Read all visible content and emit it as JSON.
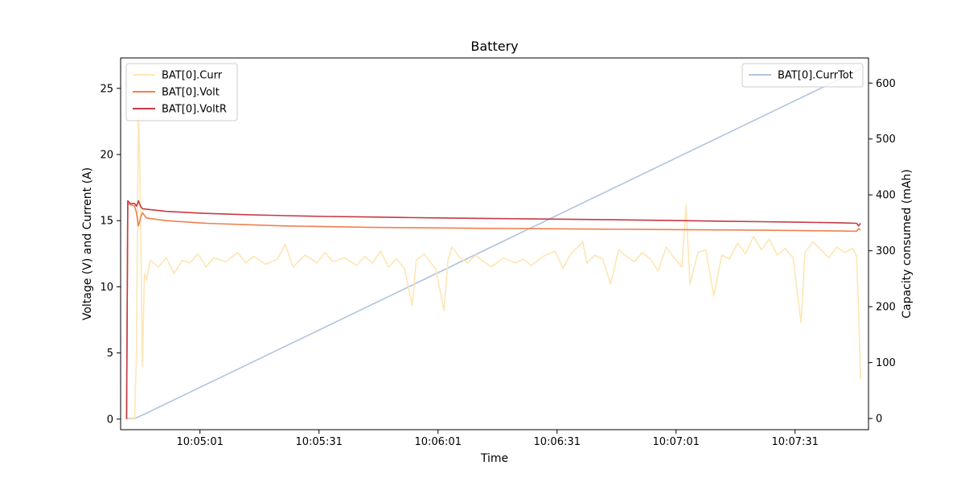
{
  "chart_data": {
    "type": "line",
    "title": "Battery",
    "xlabel": "Time",
    "ylabel_left": "Voltage (V) and Current (A)",
    "ylabel_right": "Capacity consumed (mAh)",
    "x_ticks": [
      "10:05:01",
      "10:05:31",
      "10:06:01",
      "10:06:31",
      "10:07:01",
      "10:07:31"
    ],
    "x_tick_values": [
      18.5,
      48.5,
      78.5,
      108.5,
      138.5,
      168.5
    ],
    "xlim": [
      -1.5,
      187
    ],
    "ylim_left": [
      -0.8,
      27.3
    ],
    "ylim_right": [
      -20,
      645
    ],
    "y_ticks_left": [
      0,
      5,
      10,
      15,
      20,
      25
    ],
    "y_ticks_right": [
      0,
      100,
      200,
      300,
      400,
      500,
      600
    ],
    "grid": false,
    "legend_left_position": "upper-left",
    "legend_right_position": "upper-right",
    "series_left": [
      {
        "name": "BAT[0].Curr",
        "color": "#fde6b4",
        "points": [
          [
            0,
            0
          ],
          [
            2,
            0
          ],
          [
            2.5,
            5
          ],
          [
            3,
            24
          ],
          [
            3.5,
            16
          ],
          [
            4,
            4
          ],
          [
            4.5,
            11
          ],
          [
            5,
            10.5
          ],
          [
            6,
            12
          ],
          [
            8,
            11.5
          ],
          [
            10,
            12.2
          ],
          [
            12,
            11
          ],
          [
            14,
            12
          ],
          [
            16,
            11.8
          ],
          [
            18,
            12.5
          ],
          [
            20,
            11.5
          ],
          [
            22,
            12.2
          ],
          [
            25,
            11.9
          ],
          [
            28,
            12.6
          ],
          [
            30,
            11.8
          ],
          [
            32,
            12.3
          ],
          [
            35,
            11.7
          ],
          [
            38,
            12.1
          ],
          [
            40,
            13.2
          ],
          [
            42,
            11.5
          ],
          [
            45,
            12.4
          ],
          [
            48,
            11.8
          ],
          [
            50,
            12.6
          ],
          [
            52,
            11.9
          ],
          [
            55,
            12.2
          ],
          [
            58,
            11.6
          ],
          [
            60,
            12.3
          ],
          [
            62,
            11.8
          ],
          [
            64,
            12.7
          ],
          [
            66,
            11.5
          ],
          [
            68,
            12.1
          ],
          [
            70,
            11.4
          ],
          [
            72,
            8.6
          ],
          [
            73,
            12
          ],
          [
            75,
            12.5
          ],
          [
            78,
            11.3
          ],
          [
            80,
            8.2
          ],
          [
            81,
            12
          ],
          [
            82,
            13
          ],
          [
            84,
            12.2
          ],
          [
            86,
            11.8
          ],
          [
            88,
            12.4
          ],
          [
            90,
            11.9
          ],
          [
            92,
            11.5
          ],
          [
            95,
            12.2
          ],
          [
            98,
            11.8
          ],
          [
            100,
            12.1
          ],
          [
            102,
            11.6
          ],
          [
            105,
            12.3
          ],
          [
            108,
            12.7
          ],
          [
            110,
            11.4
          ],
          [
            112,
            12.5
          ],
          [
            115,
            13.4
          ],
          [
            116,
            11.8
          ],
          [
            118,
            12.4
          ],
          [
            120,
            12.1
          ],
          [
            122,
            10.2
          ],
          [
            124,
            12.8
          ],
          [
            126,
            12.3
          ],
          [
            128,
            11.9
          ],
          [
            130,
            12.6
          ],
          [
            132,
            12.1
          ],
          [
            134,
            11.2
          ],
          [
            136,
            13
          ],
          [
            138,
            12.2
          ],
          [
            140,
            11.5
          ],
          [
            141,
            16.2
          ],
          [
            142,
            10.2
          ],
          [
            144,
            12.6
          ],
          [
            146,
            12.8
          ],
          [
            148,
            9.3
          ],
          [
            150,
            12.4
          ],
          [
            152,
            12.1
          ],
          [
            154,
            13.3
          ],
          [
            156,
            12.5
          ],
          [
            158,
            13.8
          ],
          [
            160,
            12.8
          ],
          [
            162,
            13.6
          ],
          [
            164,
            12.4
          ],
          [
            166,
            12.9
          ],
          [
            168,
            12.2
          ],
          [
            170,
            7.3
          ],
          [
            171,
            12.6
          ],
          [
            173,
            13.4
          ],
          [
            175,
            12.8
          ],
          [
            177,
            12.2
          ],
          [
            179,
            13
          ],
          [
            181,
            12.6
          ],
          [
            183,
            12.9
          ],
          [
            184,
            12.3
          ],
          [
            184.5,
            8.2
          ],
          [
            185,
            3
          ]
        ]
      },
      {
        "name": "BAT[0].Volt",
        "color": "#f08050",
        "points": [
          [
            0,
            0
          ],
          [
            0.3,
            16.3
          ],
          [
            1,
            16.2
          ],
          [
            2,
            16.1
          ],
          [
            2.5,
            15.6
          ],
          [
            3,
            14.6
          ],
          [
            3.5,
            15.2
          ],
          [
            4,
            15.6
          ],
          [
            5,
            15.2
          ],
          [
            10,
            15
          ],
          [
            20,
            14.8
          ],
          [
            30,
            14.7
          ],
          [
            40,
            14.6
          ],
          [
            50,
            14.55
          ],
          [
            60,
            14.5
          ],
          [
            70,
            14.47
          ],
          [
            80,
            14.45
          ],
          [
            90,
            14.42
          ],
          [
            100,
            14.4
          ],
          [
            110,
            14.38
          ],
          [
            120,
            14.36
          ],
          [
            130,
            14.34
          ],
          [
            140,
            14.32
          ],
          [
            150,
            14.3
          ],
          [
            160,
            14.28
          ],
          [
            170,
            14.25
          ],
          [
            180,
            14.22
          ],
          [
            184,
            14.2
          ],
          [
            184.5,
            14.4
          ],
          [
            185,
            14.3
          ]
        ]
      },
      {
        "name": "BAT[0].VoltR",
        "color": "#c63a44",
        "points": [
          [
            0,
            0
          ],
          [
            0.3,
            16.5
          ],
          [
            1,
            16.3
          ],
          [
            2,
            16.3
          ],
          [
            2.5,
            16.1
          ],
          [
            3,
            16.5
          ],
          [
            3.5,
            16.1
          ],
          [
            4,
            15.9
          ],
          [
            10,
            15.7
          ],
          [
            20,
            15.55
          ],
          [
            30,
            15.45
          ],
          [
            40,
            15.38
          ],
          [
            50,
            15.32
          ],
          [
            60,
            15.28
          ],
          [
            70,
            15.24
          ],
          [
            80,
            15.2
          ],
          [
            90,
            15.17
          ],
          [
            100,
            15.14
          ],
          [
            110,
            15.11
          ],
          [
            120,
            15.08
          ],
          [
            130,
            15.04
          ],
          [
            140,
            15
          ],
          [
            150,
            14.96
          ],
          [
            160,
            14.92
          ],
          [
            170,
            14.88
          ],
          [
            180,
            14.84
          ],
          [
            184,
            14.8
          ],
          [
            184.5,
            14.6
          ],
          [
            185,
            14.8
          ]
        ]
      }
    ],
    "series_right": [
      {
        "name": "BAT[0].CurrTot",
        "color": "#b0c4de",
        "points": [
          [
            0,
            0
          ],
          [
            2,
            0
          ],
          [
            3,
            3
          ],
          [
            4,
            6
          ],
          [
            185,
            625
          ]
        ]
      }
    ]
  }
}
